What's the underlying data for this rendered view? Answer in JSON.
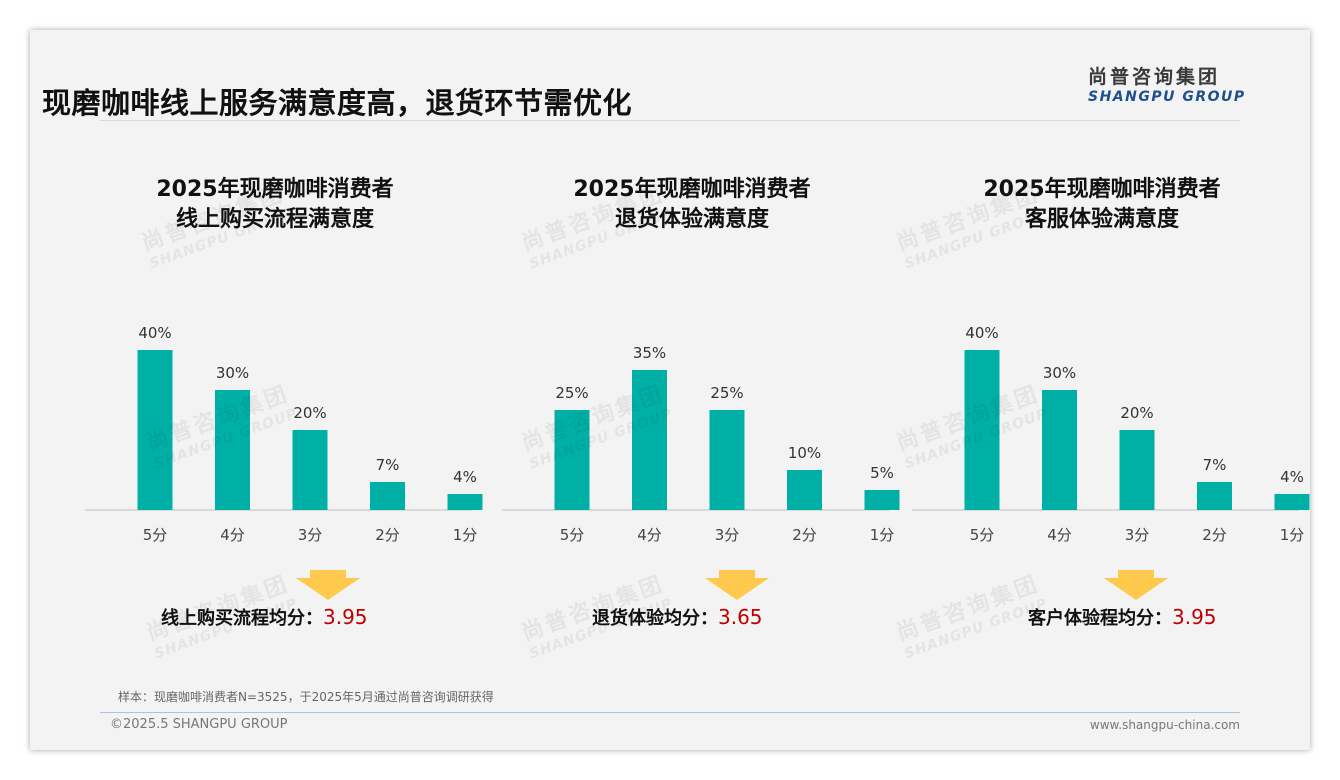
{
  "header": {
    "title": "现磨咖啡线上服务满意度高，退货环节需优化",
    "logo_cn": "尚普咨询集团",
    "logo_en": "SHANGPU GROUP"
  },
  "watermark": {
    "cn": "尚普咨询集团",
    "en": "SHANGPU GROUP"
  },
  "chart_data": [
    {
      "type": "bar",
      "title_line1": "2025年现磨咖啡消费者",
      "title_line2": "线上购买流程满意度",
      "categories": [
        "5分",
        "4分",
        "3分",
        "2分",
        "1分"
      ],
      "values": [
        40,
        30,
        20,
        7,
        4
      ],
      "value_labels": [
        "40%",
        "30%",
        "20%",
        "7%",
        "4%"
      ],
      "ylim": [
        0,
        40
      ],
      "avg_label": "线上购买流程均分：",
      "avg_value": "3.95"
    },
    {
      "type": "bar",
      "title_line1": "2025年现磨咖啡消费者",
      "title_line2": "退货体验满意度",
      "categories": [
        "5分",
        "4分",
        "3分",
        "2分",
        "1分"
      ],
      "values": [
        25,
        35,
        25,
        10,
        5
      ],
      "value_labels": [
        "25%",
        "35%",
        "25%",
        "10%",
        "5%"
      ],
      "ylim": [
        0,
        40
      ],
      "avg_label": "退货体验均分：",
      "avg_value": "3.65"
    },
    {
      "type": "bar",
      "title_line1": "2025年现磨咖啡消费者",
      "title_line2": "客服体验满意度",
      "categories": [
        "5分",
        "4分",
        "3分",
        "2分",
        "1分"
      ],
      "values": [
        40,
        30,
        20,
        7,
        4
      ],
      "value_labels": [
        "40%",
        "30%",
        "20%",
        "7%",
        "4%"
      ],
      "ylim": [
        0,
        40
      ],
      "avg_label": "客户体验程均分：",
      "avg_value": "3.95"
    }
  ],
  "colors": {
    "bar": "#00b0a6",
    "arrow": "#ffc94d",
    "score": "#c00000"
  },
  "footer": {
    "note": "样本：现磨咖啡消费者N=3525，于2025年5月通过尚普咨询调研获得",
    "copyright": "©2025.5 SHANGPU GROUP",
    "website": "www.shangpu-china.com"
  }
}
